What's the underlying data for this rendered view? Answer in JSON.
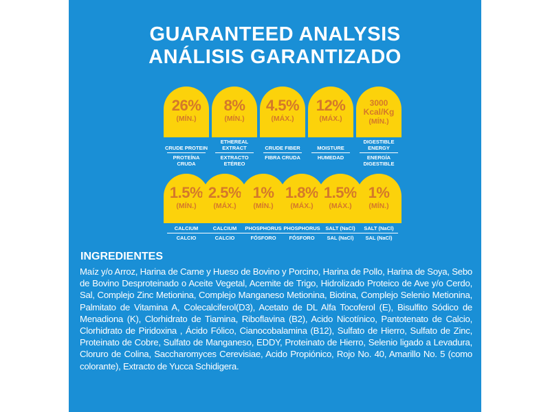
{
  "colors": {
    "panel": "#1a8fd6",
    "badge": "#fcd20b",
    "badge_text": "#d4782a",
    "text": "#ffffff"
  },
  "title_en": "GUARANTEED ANALYSIS",
  "title_es": "ANÁLISIS GARANTIZADO",
  "row1": [
    {
      "value": "26%",
      "qualifier": "(MÍN.)",
      "label_en": "CRUDE PROTEIN",
      "label_es": "PROTEÍNA CRUDA"
    },
    {
      "value": "8%",
      "qualifier": "(MÍN.)",
      "label_en": "ETHEREAL EXTRACT",
      "label_es": "EXTRACTO ETÉREO"
    },
    {
      "value": "4.5%",
      "qualifier": "(MÁX.)",
      "label_en": "CRUDE FIBER",
      "label_es": "FIBRA CRUDA"
    },
    {
      "value": "12%",
      "qualifier": "(MÁX.)",
      "label_en": "MOISTURE",
      "label_es": "HUMEDAD"
    },
    {
      "value": "3000 Kcal/Kg",
      "qualifier": "(MÍN.)",
      "label_en": "DIGESTIBLE ENERGY",
      "label_es": "ENERGÍA DIGESTIBLE"
    }
  ],
  "row2": [
    {
      "value": "1.5%",
      "qualifier": "(MÍN.)",
      "label_en": "CALCIUM",
      "label_es": "CALCIO"
    },
    {
      "value": "2.5%",
      "qualifier": "(MÁX.)",
      "label_en": "CALCIUM",
      "label_es": "CALCIO"
    },
    {
      "value": "1%",
      "qualifier": "(MÍN.)",
      "label_en": "PHOSPHORUS",
      "label_es": "FÓSFORO"
    },
    {
      "value": "1.8%",
      "qualifier": "(MÁX.)",
      "label_en": "PHOSPHORUS",
      "label_es": "FÓSFORO"
    },
    {
      "value": "1.5%",
      "qualifier": "(MÁX.)",
      "label_en": "SALT (NaCl)",
      "label_es": "SAL (NaCl)"
    },
    {
      "value": "1%",
      "qualifier": "(MÍN.)",
      "label_en": "SALT (NaCl)",
      "label_es": "SAL (NaCl)"
    }
  ],
  "ingredients_title": "INGREDIENTES",
  "ingredients_text": "Maíz y/o Arroz, Harina de Carne y Hueso de Bovino y Porcino, Harina de Pollo, Harina de Soya, Sebo de Bovino Desproteinado o Aceite Vegetal, Acemite de Trigo, Hidrolizado Proteico de Ave y/o Cerdo, Sal, Complejo Zinc Metionina, Complejo Manganeso Metionina, Biotina, Complejo Selenio Metionina, Palmitato de Vitamina A, Colecalciferol(D3), Acetato de DL Alfa Tocoferol (E), Bisulfito Sódico de Menadiona (K), Clorhidrato de Tiamina, Riboflavina (B2), Acido Nicotínico, Pantotenato de Calcio, Clorhidrato de Piridoxina , Ácido Fólico, Cianocobalamina (B12), Sulfato de Hierro, Sulfato de Zinc, Proteinato de Cobre, Sulfato de Manganeso, EDDY, Proteinato de Hierro, Selenio ligado a Levadura, Cloruro de Colina, Saccharomyces Cerevisiae, Acido Propiónico, Rojo No. 40, Amarillo No. 5 (como colorante), Extracto de Yucca Schidigera."
}
